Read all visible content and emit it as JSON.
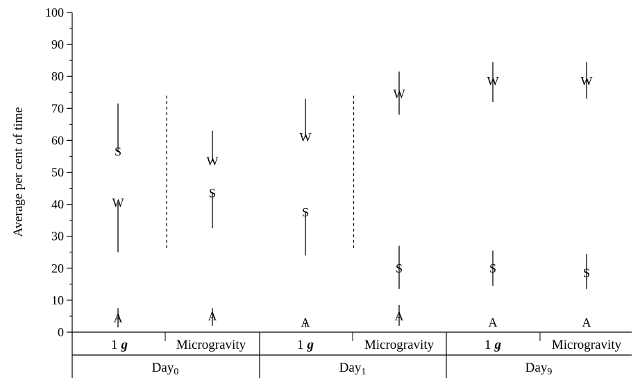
{
  "chart_data": {
    "type": "scatter",
    "title": "",
    "xlabel": "",
    "ylabel": "Average per cent of time",
    "ylim": [
      0,
      100
    ],
    "yticks": [
      "0",
      "10",
      "20",
      "30",
      "40",
      "50",
      "60",
      "70",
      "80",
      "90",
      "100"
    ],
    "days": [
      {
        "label": "Day",
        "subscript": "0"
      },
      {
        "label": "Day",
        "subscript": "1"
      },
      {
        "label": "Day",
        "subscript": "9"
      }
    ],
    "conditions": [
      {
        "text": "1",
        "bold": "g"
      },
      {
        "text": "Microgravity",
        "bold": ""
      }
    ],
    "groups": [
      {
        "day": 0,
        "condition": 0,
        "points": [
          {
            "marker": "S",
            "value": 56.5,
            "bar": [
              56.5,
              71.5
            ]
          },
          {
            "marker": "W",
            "value": 40.5,
            "bar": [
              25,
              40.5
            ]
          },
          {
            "marker": "A",
            "value": 4.5,
            "bar": [
              1.5,
              7.5
            ]
          }
        ]
      },
      {
        "day": 0,
        "condition": 1,
        "points": [
          {
            "marker": "W",
            "value": 53.5,
            "bar": [
              53.5,
              63
            ]
          },
          {
            "marker": "S",
            "value": 43.5,
            "bar": [
              32.5,
              43.5
            ]
          },
          {
            "marker": "A",
            "value": 5,
            "bar": [
              2,
              7.5
            ]
          }
        ]
      },
      {
        "day": 1,
        "condition": 0,
        "points": [
          {
            "marker": "W",
            "value": 61,
            "bar": [
              61,
              73
            ]
          },
          {
            "marker": "S",
            "value": 37.5,
            "bar": [
              24,
              37.5
            ]
          },
          {
            "marker": "A",
            "value": 3,
            "bar": [
              1.5,
              3
            ]
          }
        ]
      },
      {
        "day": 1,
        "condition": 1,
        "points": [
          {
            "marker": "W",
            "value": 74.5,
            "bar": [
              68,
              81.5
            ]
          },
          {
            "marker": "S",
            "value": 20,
            "bar": [
              13.5,
              27
            ]
          },
          {
            "marker": "A",
            "value": 5,
            "bar": [
              2,
              8.5
            ]
          }
        ]
      },
      {
        "day": 2,
        "condition": 0,
        "points": [
          {
            "marker": "W",
            "value": 78.5,
            "bar": [
              72,
              84.5
            ]
          },
          {
            "marker": "S",
            "value": 20,
            "bar": [
              14.5,
              25.5
            ]
          },
          {
            "marker": "A",
            "value": 3,
            "bar": [
              3,
              3
            ]
          }
        ]
      },
      {
        "day": 2,
        "condition": 1,
        "points": [
          {
            "marker": "W",
            "value": 78.5,
            "bar": [
              73,
              84.5
            ]
          },
          {
            "marker": "S",
            "value": 18.5,
            "bar": [
              13.5,
              24.5
            ]
          },
          {
            "marker": "A",
            "value": 3,
            "bar": [
              3,
              3
            ]
          }
        ]
      }
    ],
    "separators": [
      {
        "after_group": 0,
        "range": [
          25.5,
          74
        ]
      },
      {
        "after_group": 2,
        "range": [
          25.5,
          74
        ]
      }
    ],
    "grid": false,
    "legend": "none"
  }
}
